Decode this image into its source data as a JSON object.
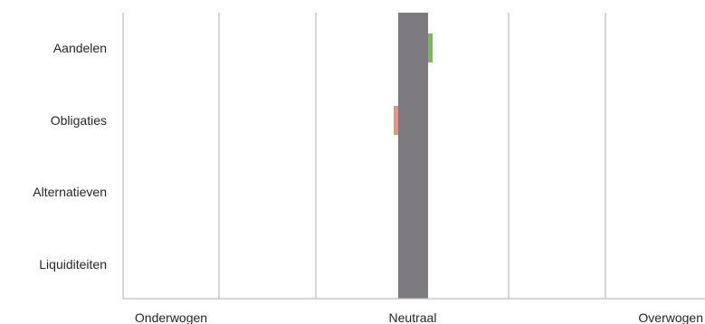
{
  "chart_data": {
    "type": "bar",
    "categories": [
      "Aandelen",
      "Obligaties",
      "Alternatieven",
      "Liquiditeiten"
    ],
    "x_tick_labels": {
      "left": "Onderwogen",
      "center": "Neutraal",
      "right": "Overwogen"
    },
    "neutral_band": {
      "color": "#7d7a7f"
    },
    "deviations": [
      {
        "category": "Aandelen",
        "direction": "overweight",
        "color": "#6cc24a"
      },
      {
        "category": "Obligaties",
        "direction": "underweight",
        "color": "#f0907a"
      }
    ],
    "grid": true,
    "gridline_color": "#bfbfbf",
    "legend": "none"
  }
}
